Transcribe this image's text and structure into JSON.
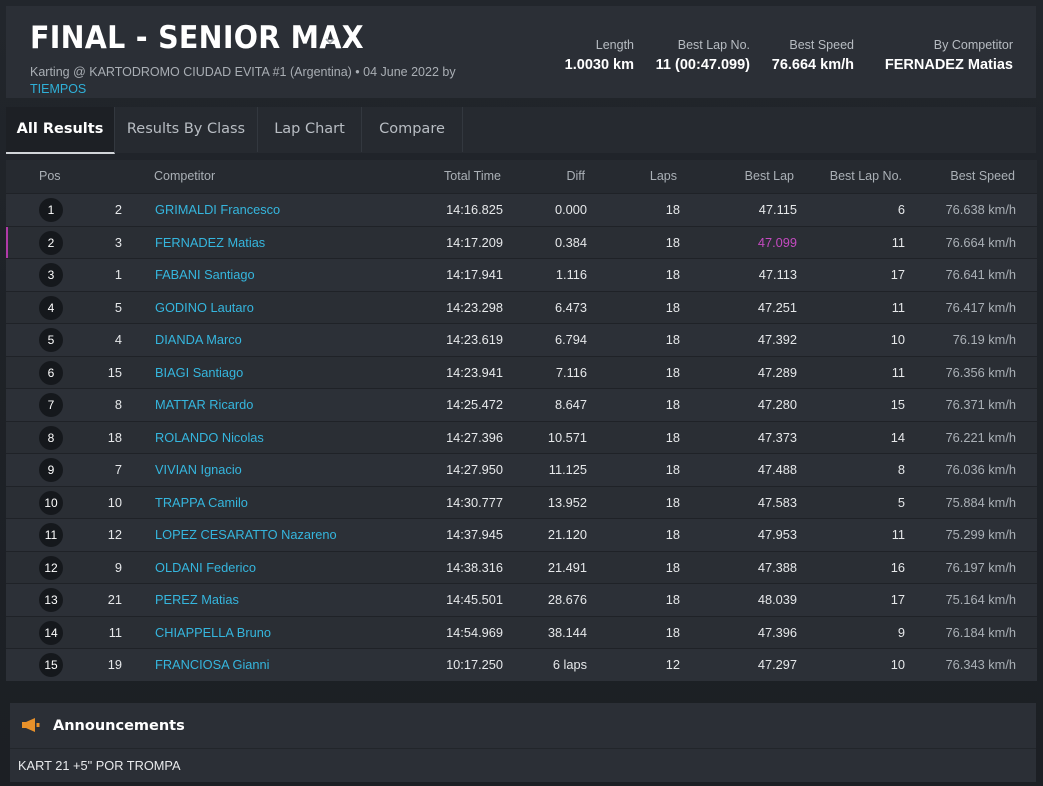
{
  "header": {
    "title": "FINAL - SENIOR MAX",
    "subtitle": "Karting @ KARTODROMO CIUDAD EVITA #1 (Argentina) • 04 June 2022 by",
    "subtitle_link": "TIEMPOS",
    "stats": [
      {
        "label": "Length",
        "value": "1.0030 km"
      },
      {
        "label": "Best Lap No.",
        "value": "11 (00:47.099)"
      },
      {
        "label": "Best Speed",
        "value": "76.664 km/h"
      },
      {
        "label": "By Competitor",
        "value": "FERNADEZ Matias"
      }
    ]
  },
  "tabs": [
    "All Results",
    "Results By Class",
    "Lap Chart",
    "Compare"
  ],
  "table": {
    "columns": [
      "Pos",
      "Competitor",
      "Total Time",
      "Diff",
      "Laps",
      "Best Lap",
      "Best Lap No.",
      "Best Speed"
    ],
    "rows": [
      {
        "pos": "1",
        "num": "2",
        "name": "GRIMALDI Francesco",
        "total": "14:16.825",
        "diff": "0.000",
        "laps": "18",
        "best": "47.115",
        "bestno": "6",
        "speed": "76.638 km/h"
      },
      {
        "pos": "2",
        "num": "3",
        "name": "FERNADEZ Matias",
        "total": "14:17.209",
        "diff": "0.384",
        "laps": "18",
        "best": "47.099",
        "bestno": "11",
        "speed": "76.664 km/h"
      },
      {
        "pos": "3",
        "num": "1",
        "name": "FABANI Santiago",
        "total": "14:17.941",
        "diff": "1.116",
        "laps": "18",
        "best": "47.113",
        "bestno": "17",
        "speed": "76.641 km/h"
      },
      {
        "pos": "4",
        "num": "5",
        "name": "GODINO Lautaro",
        "total": "14:23.298",
        "diff": "6.473",
        "laps": "18",
        "best": "47.251",
        "bestno": "11",
        "speed": "76.417 km/h"
      },
      {
        "pos": "5",
        "num": "4",
        "name": "DIANDA Marco",
        "total": "14:23.619",
        "diff": "6.794",
        "laps": "18",
        "best": "47.392",
        "bestno": "10",
        "speed": "76.19 km/h"
      },
      {
        "pos": "6",
        "num": "15",
        "name": "BIAGI Santiago",
        "total": "14:23.941",
        "diff": "7.116",
        "laps": "18",
        "best": "47.289",
        "bestno": "11",
        "speed": "76.356 km/h"
      },
      {
        "pos": "7",
        "num": "8",
        "name": "MATTAR Ricardo",
        "total": "14:25.472",
        "diff": "8.647",
        "laps": "18",
        "best": "47.280",
        "bestno": "15",
        "speed": "76.371 km/h"
      },
      {
        "pos": "8",
        "num": "18",
        "name": "ROLANDO Nicolas",
        "total": "14:27.396",
        "diff": "10.571",
        "laps": "18",
        "best": "47.373",
        "bestno": "14",
        "speed": "76.221 km/h"
      },
      {
        "pos": "9",
        "num": "7",
        "name": "VIVIAN Ignacio",
        "total": "14:27.950",
        "diff": "11.125",
        "laps": "18",
        "best": "47.488",
        "bestno": "8",
        "speed": "76.036 km/h"
      },
      {
        "pos": "10",
        "num": "10",
        "name": "TRAPPA Camilo",
        "total": "14:30.777",
        "diff": "13.952",
        "laps": "18",
        "best": "47.583",
        "bestno": "5",
        "speed": "75.884 km/h"
      },
      {
        "pos": "11",
        "num": "12",
        "name": "LOPEZ CESARATTO Nazareno",
        "total": "14:37.945",
        "diff": "21.120",
        "laps": "18",
        "best": "47.953",
        "bestno": "11",
        "speed": "75.299 km/h"
      },
      {
        "pos": "12",
        "num": "9",
        "name": "OLDANI Federico",
        "total": "14:38.316",
        "diff": "21.491",
        "laps": "18",
        "best": "47.388",
        "bestno": "16",
        "speed": "76.197 km/h"
      },
      {
        "pos": "13",
        "num": "21",
        "name": "PEREZ Matias",
        "total": "14:45.501",
        "diff": "28.676",
        "laps": "18",
        "best": "48.039",
        "bestno": "17",
        "speed": "75.164 km/h"
      },
      {
        "pos": "14",
        "num": "11",
        "name": "CHIAPPELLA Bruno",
        "total": "14:54.969",
        "diff": "38.144",
        "laps": "18",
        "best": "47.396",
        "bestno": "9",
        "speed": "76.184 km/h"
      },
      {
        "pos": "15",
        "num": "19",
        "name": "FRANCIOSA Gianni",
        "total": "10:17.250",
        "diff": "6 laps",
        "laps": "12",
        "best": "47.297",
        "bestno": "10",
        "speed": "76.343 km/h"
      }
    ]
  },
  "announcements": {
    "title": "Announcements",
    "text": "KART 21 +5\" POR TROMPA"
  },
  "colors": {
    "accent": "#35b6de",
    "best_lap": "#c44ac0",
    "megaphone": "#e8912a"
  }
}
